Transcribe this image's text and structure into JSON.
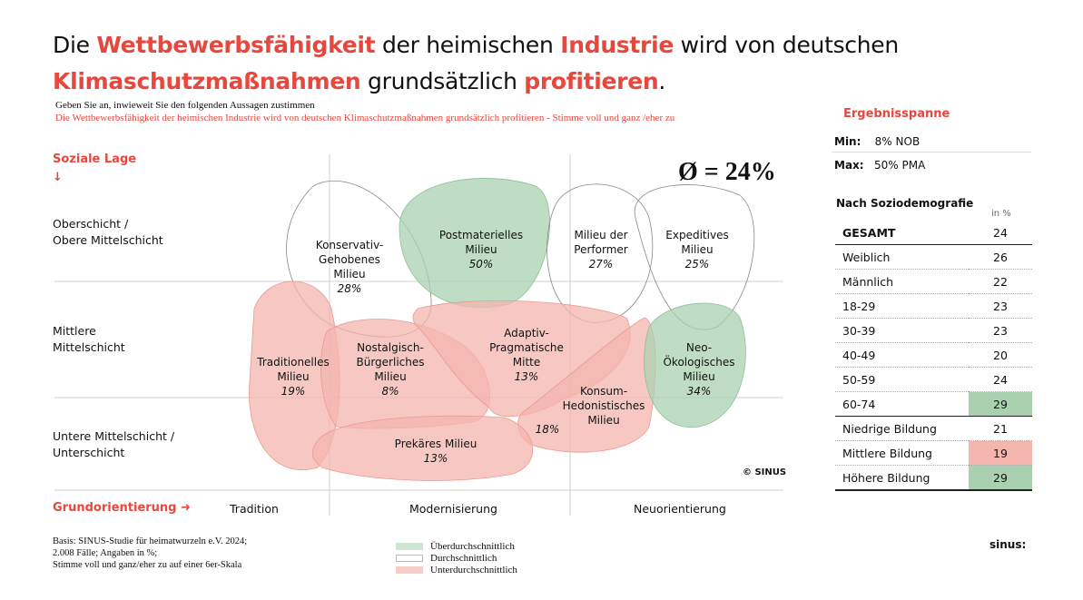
{
  "title": {
    "p1": "Die ",
    "h1": "Wettbewerbsfähigkeit",
    "p2": " der heimischen ",
    "h2": "Industrie",
    "p3": " wird von deutschen",
    "h3": "Klimaschutzmaßnahmen",
    "p4": " grundsätzlich ",
    "h4": "profitieren",
    "p5": "."
  },
  "question": "Geben Sie an, inwieweit Sie den folgenden Aussagen zustimmen",
  "statement": "Die Wettbewerbsfähigkeit der heimischen Industrie wird von deutschen Klimaschutzmaßnahmen grundsätzlich profitieren - Stimme voll und ganz /eher zu",
  "chart_data": {
    "type": "milieu-map",
    "average": "Ø = 24%",
    "y_axis_label": "Soziale Lage",
    "x_axis_label": "Grundorientierung",
    "y_categories": [
      "Oberschicht / Obere Mittelschicht",
      "Mittlere Mittelschicht",
      "Untere Mittelschicht / Unterschicht"
    ],
    "x_categories": [
      "Tradition",
      "Modernisierung",
      "Neuorientierung"
    ],
    "milieus": [
      {
        "name": "Konservativ-Gehobenes Milieu",
        "value": "28%",
        "rating": "average"
      },
      {
        "name": "Postmaterielles Milieu",
        "value": "50%",
        "rating": "above"
      },
      {
        "name": "Milieu der Performer",
        "value": "27%",
        "rating": "average"
      },
      {
        "name": "Expeditives Milieu",
        "value": "25%",
        "rating": "average"
      },
      {
        "name": "Traditionelles Milieu",
        "value": "19%",
        "rating": "below"
      },
      {
        "name": "Nostalgisch-Bürgerliches Milieu",
        "value": "8%",
        "rating": "below"
      },
      {
        "name": "Adaptiv-Pragmatische Mitte",
        "value": "13%",
        "rating": "below"
      },
      {
        "name": "Konsum-Hedonistisches Milieu",
        "value": "18%",
        "rating": "below"
      },
      {
        "name": "Neo-Ökologisches Milieu",
        "value": "34%",
        "rating": "above"
      },
      {
        "name": "Prekäres Milieu",
        "value": "13%",
        "rating": "below"
      }
    ],
    "copyright": "© SINUS"
  },
  "labels": {
    "oberschicht1": "Oberschicht  /",
    "oberschicht2": "Obere Mittelschicht",
    "mittlere1": "Mittlere",
    "mittlere2": "Mittelschicht",
    "untere1": "Untere Mittelschicht  /",
    "untere2": "Unterschicht",
    "kg": [
      "Konservativ-",
      "Gehobenes",
      "Milieu"
    ],
    "pm": [
      "Postmaterielles",
      "Milieu"
    ],
    "pf": [
      "Milieu der",
      "Performer"
    ],
    "ex": [
      "Expeditives",
      "Milieu"
    ],
    "tr": [
      "Traditionelles",
      "Milieu"
    ],
    "nb": [
      "Nostalgisch-",
      "Bürgerliches",
      "Milieu"
    ],
    "ap": [
      "Adaptiv-",
      "Pragmatische",
      "Mitte"
    ],
    "kh": [
      "Konsum-",
      "Hedonistisches",
      "Milieu"
    ],
    "no": [
      "Neo-",
      "Ökologisches",
      "Milieu"
    ],
    "pr": [
      "Prekäres Milieu"
    ]
  },
  "colors": {
    "accent": "#e8473e",
    "above": "#a9d1b0",
    "below": "#f4b5ae"
  },
  "legend": [
    "Überdurchschnittlich",
    "Durchschnittlich",
    "Unterdurchschnittlich"
  ],
  "basis": [
    "Basis: SINUS-Studie für heimatwurzeln e.V. 2024;",
    "2.008 Fälle; Angaben in %;",
    "Stimme voll und ganz/eher zu auf einer 6er-Skala"
  ],
  "side": {
    "spanne_title": "Ergebnisspanne",
    "min_label": "Min:",
    "min_value": "8%  NOB",
    "max_label": "Max:",
    "max_value": "50% PMA",
    "socio_title": "Nach Soziodemografie",
    "unit": "in %",
    "rows": [
      {
        "label": "GESAMT",
        "value": "24",
        "hl": ""
      },
      {
        "label": "Weiblich",
        "value": "26",
        "hl": ""
      },
      {
        "label": "Männlich",
        "value": "22",
        "hl": ""
      },
      {
        "label": "18-29",
        "value": "23",
        "hl": ""
      },
      {
        "label": "30-39",
        "value": "23",
        "hl": ""
      },
      {
        "label": "40-49",
        "value": "20",
        "hl": ""
      },
      {
        "label": "50-59",
        "value": "24",
        "hl": ""
      },
      {
        "label": "60-74",
        "value": "29",
        "hl": "above"
      },
      {
        "label": "Niedrige Bildung",
        "value": "21",
        "hl": ""
      },
      {
        "label": "Mittlere Bildung",
        "value": "19",
        "hl": "below"
      },
      {
        "label": "Höhere Bildung",
        "value": "29",
        "hl": "above"
      }
    ]
  },
  "logo": "sinus:"
}
